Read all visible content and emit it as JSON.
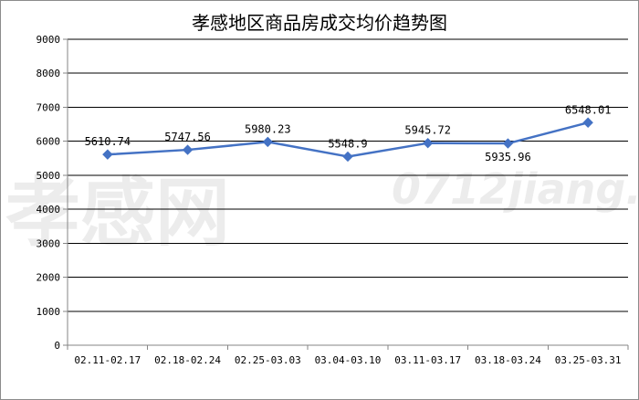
{
  "chart_data": {
    "type": "line",
    "title": "孝感地区商品房成交均价趋势图",
    "categories": [
      "02.11-02.17",
      "02.18-02.24",
      "02.25-03.03",
      "03.04-03.10",
      "03.11-03.17",
      "03.18-03.24",
      "03.25-03.31"
    ],
    "values": [
      5610.74,
      5747.56,
      5980.23,
      5548.9,
      5945.72,
      5935.96,
      6548.01
    ],
    "data_labels": [
      "5610.74",
      "5747.56",
      "5980.23",
      "5548.9",
      "5945.72",
      "5935.96",
      "6548.01"
    ],
    "y_ticks": [
      "0",
      "1000",
      "2000",
      "3000",
      "4000",
      "5000",
      "6000",
      "7000",
      "8000",
      "9000"
    ],
    "ylim": [
      0,
      9000
    ],
    "grid": true,
    "legend": "none",
    "line_color": "#4472c4",
    "marker": "diamond"
  },
  "watermark": {
    "brand": "孝感网",
    "url": "0712jiang.com"
  }
}
